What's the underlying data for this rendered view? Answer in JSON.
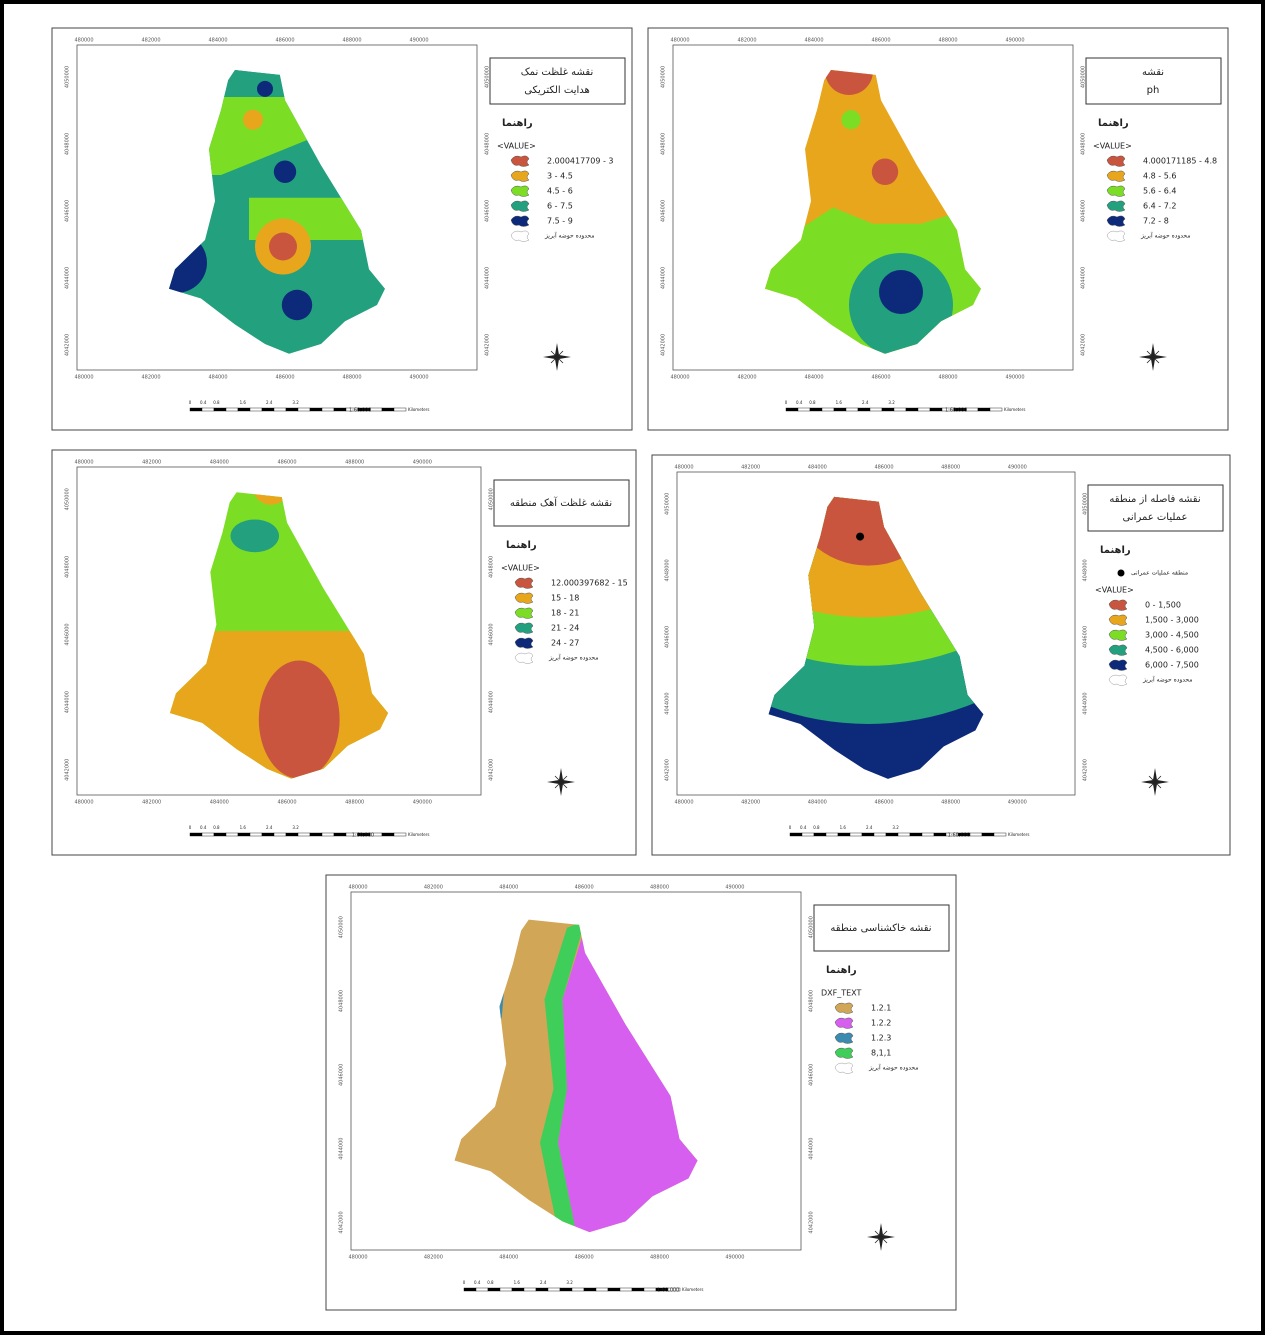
{
  "maps": [
    {
      "title": [
        "نقشه غلظت نمک",
        "هدایت الکتریکی"
      ],
      "legend_heading": "راهنما",
      "field": "<VALUE>",
      "classes": [
        {
          "label": "2.000417709 - 3",
          "color": "#c9553e"
        },
        {
          "label": "3 - 4.5",
          "color": "#e8a61c"
        },
        {
          "label": "4.5 - 6",
          "color": "#7bde25"
        },
        {
          "label": "6 - 7.5",
          "color": "#23a07e"
        },
        {
          "label": "7.5 - 9",
          "color": "#0d2a7a"
        }
      ],
      "boundary_label": "محدوده حوضه آبریز",
      "x_labels": [
        "480000",
        "482000",
        "484000",
        "486000",
        "488000",
        "490000"
      ],
      "y_labels": [
        "4042000",
        "4044000",
        "4046000",
        "4048000",
        "4050000"
      ],
      "scale_labels": [
        "0",
        "0.4",
        "0.8",
        "1.6",
        "2.4",
        "3.2"
      ],
      "scale_unit": "Kilometers",
      "ratio": "1:60,000"
    },
    {
      "title": [
        "نقشه",
        "ph"
      ],
      "legend_heading": "راهنما",
      "field": "<VALUE>",
      "classes": [
        {
          "label": "4.000171185 - 4.8",
          "color": "#c9553e"
        },
        {
          "label": "4.8 - 5.6",
          "color": "#e8a61c"
        },
        {
          "label": "5.6 - 6.4",
          "color": "#7bde25"
        },
        {
          "label": "6.4 - 7.2",
          "color": "#23a07e"
        },
        {
          "label": "7.2 - 8",
          "color": "#0d2a7a"
        }
      ],
      "boundary_label": "محدوده حوضه آبریز",
      "x_labels": [
        "480000",
        "482000",
        "484000",
        "486000",
        "488000",
        "490000"
      ],
      "y_labels": [
        "4042000",
        "4044000",
        "4046000",
        "4048000",
        "4050000"
      ],
      "scale_labels": [
        "0",
        "0.4",
        "0.8",
        "1.6",
        "2.4",
        "3.2"
      ],
      "scale_unit": "Kilometers",
      "ratio": "1:60,000"
    },
    {
      "title": [
        "نقشه غلظت آهک منطقه"
      ],
      "legend_heading": "راهنما",
      "field": "<VALUE>",
      "classes": [
        {
          "label": "12.000397682 - 15",
          "color": "#c9553e"
        },
        {
          "label": "15 - 18",
          "color": "#e8a61c"
        },
        {
          "label": "18 - 21",
          "color": "#7bde25"
        },
        {
          "label": "21 - 24",
          "color": "#23a07e"
        },
        {
          "label": "24 - 27",
          "color": "#0d2a7a"
        }
      ],
      "boundary_label": "محدوده حوضه آبریز",
      "x_labels": [
        "480000",
        "482000",
        "484000",
        "486000",
        "488000",
        "490000"
      ],
      "y_labels": [
        "4042000",
        "4044000",
        "4046000",
        "4048000",
        "4050000"
      ],
      "scale_labels": [
        "0",
        "0.4",
        "0.8",
        "1.6",
        "2.4",
        "3.2"
      ],
      "scale_unit": "Kilometers",
      "ratio": "1:60,000"
    },
    {
      "title": [
        "نقشه فاصله از منطقه",
        "عملیات عمرانی"
      ],
      "legend_heading": "راهنما",
      "point_label": "منطقه عملیات عمرانی",
      "field": "<VALUE>",
      "classes": [
        {
          "label": "0 - 1,500",
          "color": "#c9553e"
        },
        {
          "label": "1,500 - 3,000",
          "color": "#e8a61c"
        },
        {
          "label": "3,000 - 4,500",
          "color": "#7bde25"
        },
        {
          "label": "4,500 - 6,000",
          "color": "#23a07e"
        },
        {
          "label": "6,000 - 7,500",
          "color": "#0d2a7a"
        }
      ],
      "boundary_label": "محدوده حوضه آبریز",
      "x_labels": [
        "480000",
        "482000",
        "484000",
        "486000",
        "488000",
        "490000"
      ],
      "y_labels": [
        "4042000",
        "4044000",
        "4046000",
        "4048000",
        "4050000"
      ],
      "scale_labels": [
        "0",
        "0.4",
        "0.8",
        "1.6",
        "2.4",
        "3.2"
      ],
      "scale_unit": "Kilometers",
      "ratio": "1:60,000"
    },
    {
      "title": [
        "نقشه خاکشناسی منطقه"
      ],
      "legend_heading": "راهنما",
      "field": "DXF_TEXT",
      "classes": [
        {
          "label": "1.2.1",
          "color": "#d1a656"
        },
        {
          "label": "1.2.2",
          "color": "#d75ff0"
        },
        {
          "label": "1.2.3",
          "color": "#3b8bb0"
        },
        {
          "label": "8,1,1",
          "color": "#3fce5a"
        }
      ],
      "boundary_label": "محدوده حوضه آبریز",
      "x_labels": [
        "480000",
        "482000",
        "484000",
        "486000",
        "488000",
        "490000"
      ],
      "y_labels": [
        "4042000",
        "4044000",
        "4046000",
        "4048000",
        "4050000"
      ],
      "scale_labels": [
        "0",
        "0.4",
        "0.8",
        "1.6",
        "2.4",
        "3.2"
      ],
      "scale_unit": "Kilometers",
      "ratio": "1:60,000"
    }
  ]
}
